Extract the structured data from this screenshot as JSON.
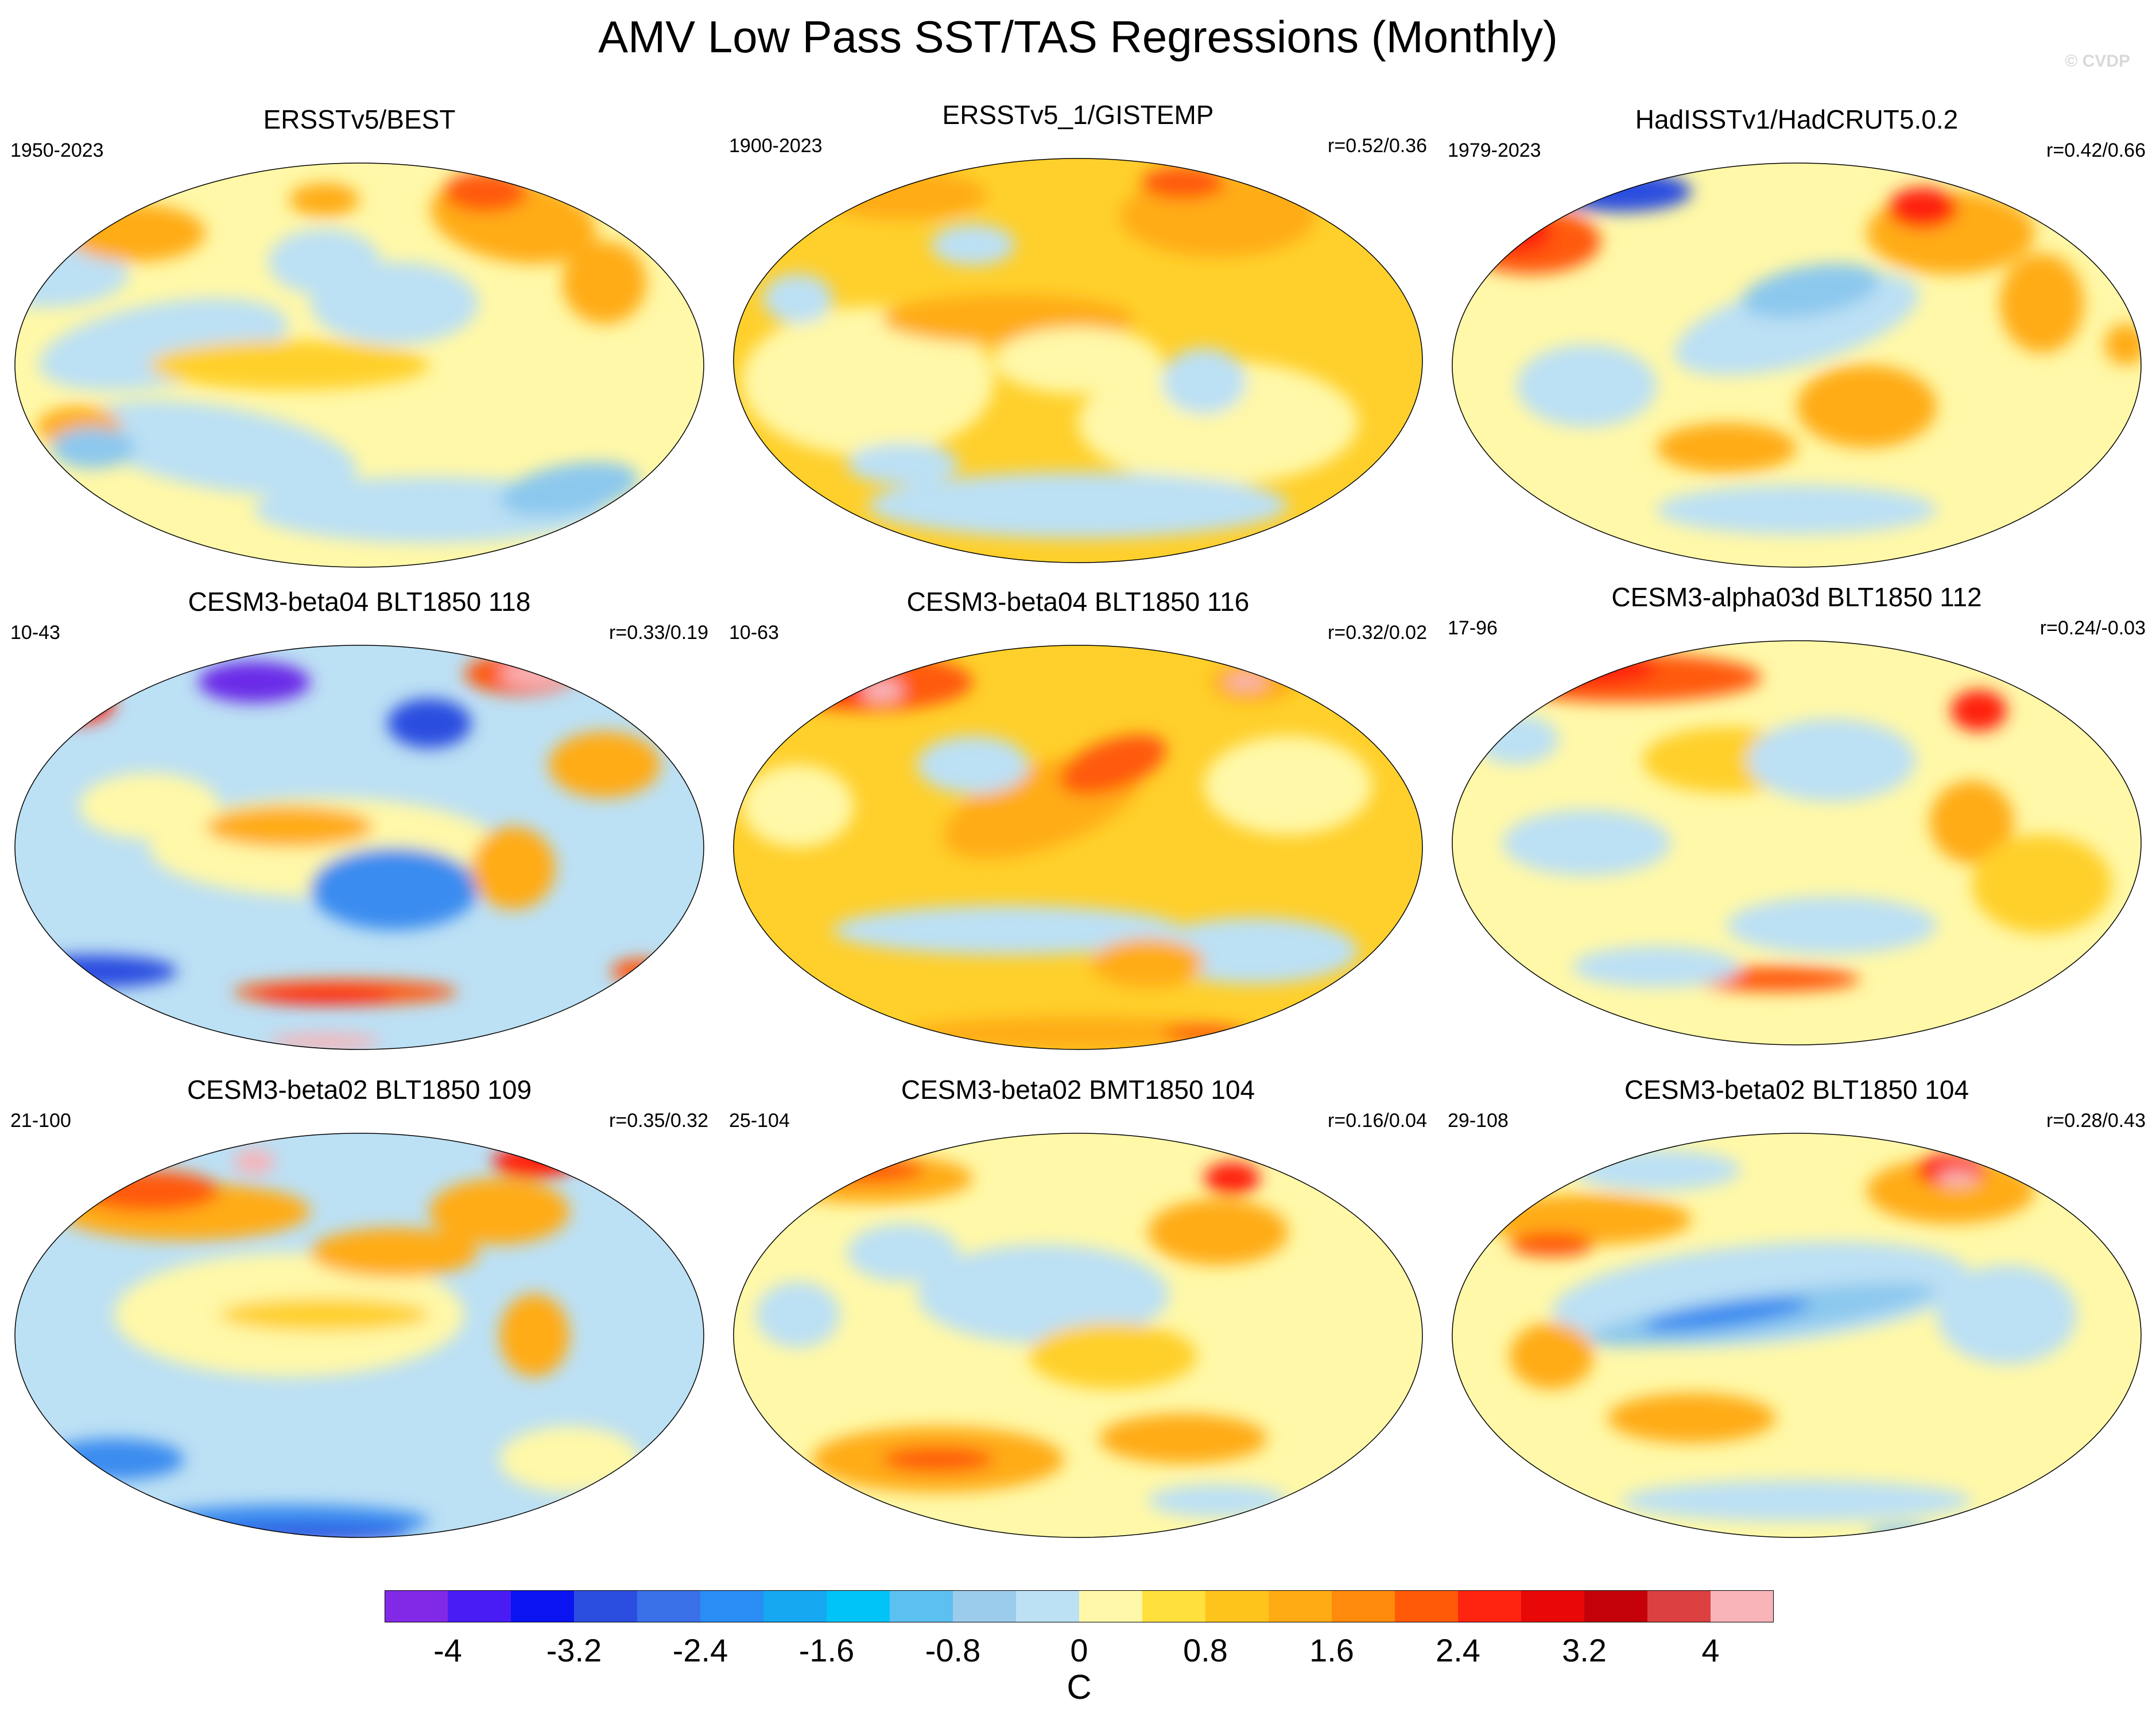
{
  "title": "AMV Low Pass SST/TAS Regressions (Monthly)",
  "credit": "© CVDP",
  "panels": [
    {
      "title": "ERSSTv5/BEST",
      "years": "1950-2023",
      "r": "",
      "theme": "obs1"
    },
    {
      "title": "ERSSTv5_1/GISTEMP",
      "years": "1900-2023",
      "r": "r=0.52/0.36",
      "theme": "obs2"
    },
    {
      "title": "HadISSTv1/HadCRUT5.0.2",
      "years": "1979-2023",
      "r": "r=0.42/0.66",
      "theme": "obs3"
    },
    {
      "title": "CESM3-beta04 BLT1850 118",
      "years": "10-43",
      "r": "r=0.33/0.19",
      "theme": "m1"
    },
    {
      "title": "CESM3-beta04 BLT1850 116",
      "years": "10-63",
      "r": "r=0.32/0.02",
      "theme": "m2"
    },
    {
      "title": "CESM3-alpha03d BLT1850 112",
      "years": "17-96",
      "r": "r=0.24/-0.03",
      "theme": "m3"
    },
    {
      "title": "CESM3-beta02 BLT1850 109",
      "years": "21-100",
      "r": "r=0.35/0.32",
      "theme": "m4"
    },
    {
      "title": "CESM3-beta02 BMT1850 104",
      "years": "25-104",
      "r": "r=0.16/0.04",
      "theme": "m5"
    },
    {
      "title": "CESM3-beta02 BLT1850 104",
      "years": "29-108",
      "r": "r=0.28/0.43",
      "theme": "m6"
    }
  ],
  "colorbar": {
    "units": "C",
    "labels": [
      "-4",
      "-3.2",
      "-2.4",
      "-1.6",
      "-0.8",
      "0",
      "0.8",
      "1.6",
      "2.4",
      "3.2",
      "4"
    ],
    "colors": [
      "#8229e8",
      "#4a1cf5",
      "#0a14f0",
      "#2b4ee0",
      "#3a70e8",
      "#2a8cf5",
      "#16a8f0",
      "#00c4f8",
      "#5cc0f0",
      "#9cccec",
      "#bce0f4",
      "#fff8a8",
      "#ffe03c",
      "#ffc41c",
      "#ffac14",
      "#ff8a0c",
      "#ff5a08",
      "#ff2410",
      "#e80808",
      "#c40008",
      "#dc4040",
      "#f8b4b8"
    ]
  }
}
